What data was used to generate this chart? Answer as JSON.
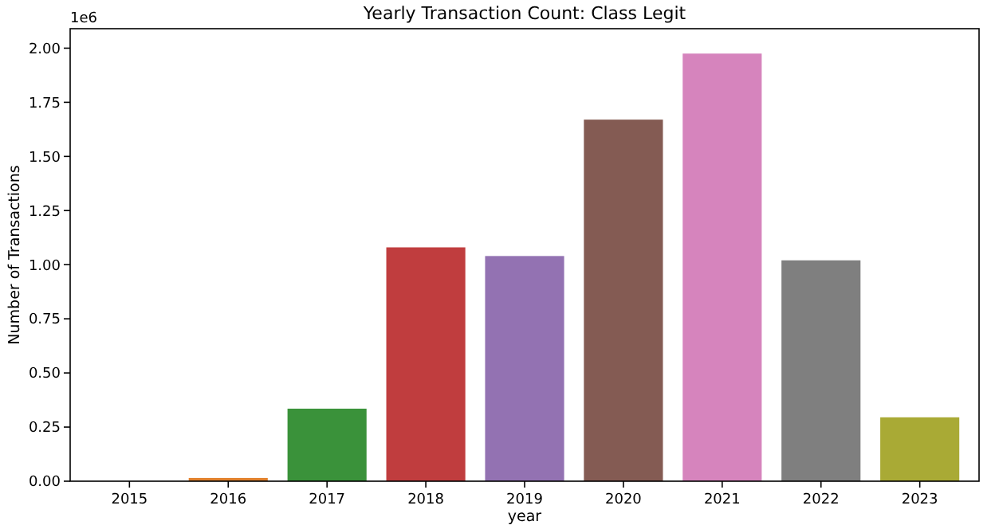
{
  "chart_data": {
    "type": "bar",
    "title": "Yearly Transaction Count: Class Legit",
    "xlabel": "year",
    "ylabel": "Number of Transactions",
    "annotations": [
      "1e6"
    ],
    "categories": [
      "2015",
      "2016",
      "2017",
      "2018",
      "2019",
      "2020",
      "2021",
      "2022",
      "2023"
    ],
    "values": [
      0,
      0.015,
      0.335,
      1.08,
      1.04,
      1.67,
      1.975,
      1.02,
      0.295
    ],
    "colors": [
      "#3274a1",
      "#e1812c",
      "#3a923a",
      "#c03d3e",
      "#9372b2",
      "#845b53",
      "#d684bd",
      "#7f7f7f",
      "#a9aa35"
    ],
    "ylim": [
      0,
      2.09
    ],
    "yticks": [
      {
        "value": 0,
        "label": "0.00"
      },
      {
        "value": 0.25,
        "label": "0.25"
      },
      {
        "value": 0.5,
        "label": "0.50"
      },
      {
        "value": 0.75,
        "label": "0.75"
      },
      {
        "value": 1,
        "label": "1.00"
      },
      {
        "value": 1.25,
        "label": "1.25"
      },
      {
        "value": 1.5,
        "label": "1.50"
      },
      {
        "value": 1.75,
        "label": "1.75"
      },
      {
        "value": 2,
        "label": "2.00"
      }
    ],
    "grid": false
  }
}
